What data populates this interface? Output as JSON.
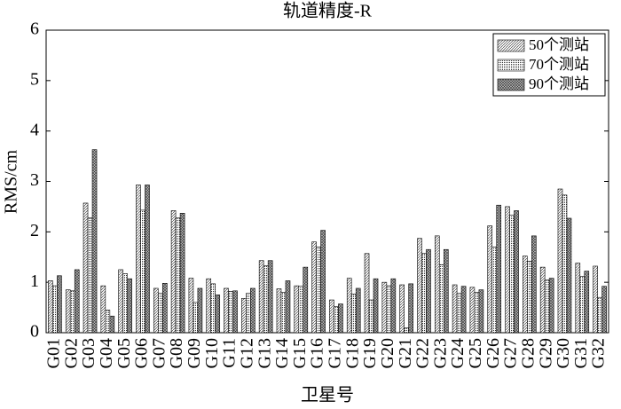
{
  "chart_data": {
    "type": "bar",
    "title": "轨道精度-R",
    "x_label": "卫星号",
    "y_label": "RMS/cm",
    "categories": [
      "G01",
      "G02",
      "G03",
      "G04",
      "G05",
      "G06",
      "G07",
      "G08",
      "G09",
      "G10",
      "G11",
      "G12",
      "G13",
      "G14",
      "G15",
      "G16",
      "G17",
      "G18",
      "G19",
      "G20",
      "G21",
      "G22",
      "G23",
      "G24",
      "G25",
      "G26",
      "G27",
      "G28",
      "G29",
      "G30",
      "G31",
      "G32"
    ],
    "series": [
      {
        "name": "50个测站",
        "color": "#000000",
        "pattern": "diagonal",
        "values": [
          1.03,
          0.85,
          2.57,
          0.93,
          1.25,
          2.93,
          0.88,
          2.42,
          1.08,
          1.07,
          0.88,
          0.68,
          1.43,
          0.87,
          0.93,
          1.8,
          0.65,
          1.08,
          1.57,
          1.0,
          0.95,
          1.87,
          1.92,
          0.95,
          0.9,
          2.12,
          2.5,
          1.52,
          1.3,
          2.85,
          1.38,
          1.32
        ]
      },
      {
        "name": "70个测站",
        "color": "#000000",
        "pattern": "dots",
        "values": [
          0.93,
          0.83,
          2.28,
          0.45,
          1.17,
          2.43,
          0.78,
          2.28,
          0.6,
          0.97,
          0.82,
          0.78,
          1.33,
          0.8,
          0.92,
          1.7,
          0.52,
          0.77,
          0.65,
          0.93,
          0.1,
          1.57,
          1.35,
          0.78,
          0.8,
          1.7,
          2.33,
          1.42,
          1.05,
          2.73,
          1.12,
          0.7
        ]
      },
      {
        "name": "90个测站",
        "color": "#000000",
        "pattern": "cross",
        "values": [
          1.13,
          1.25,
          3.63,
          0.33,
          1.07,
          2.93,
          0.98,
          2.37,
          0.88,
          0.75,
          0.83,
          0.88,
          1.43,
          1.03,
          1.3,
          2.03,
          0.57,
          0.88,
          1.07,
          1.07,
          0.97,
          1.65,
          1.65,
          0.92,
          0.85,
          2.53,
          2.42,
          1.92,
          1.08,
          2.27,
          1.22,
          0.92
        ]
      }
    ],
    "ylim": [
      0,
      6
    ],
    "yticks": [
      0,
      1,
      2,
      3,
      4,
      5,
      6
    ],
    "legend": "top-right"
  }
}
